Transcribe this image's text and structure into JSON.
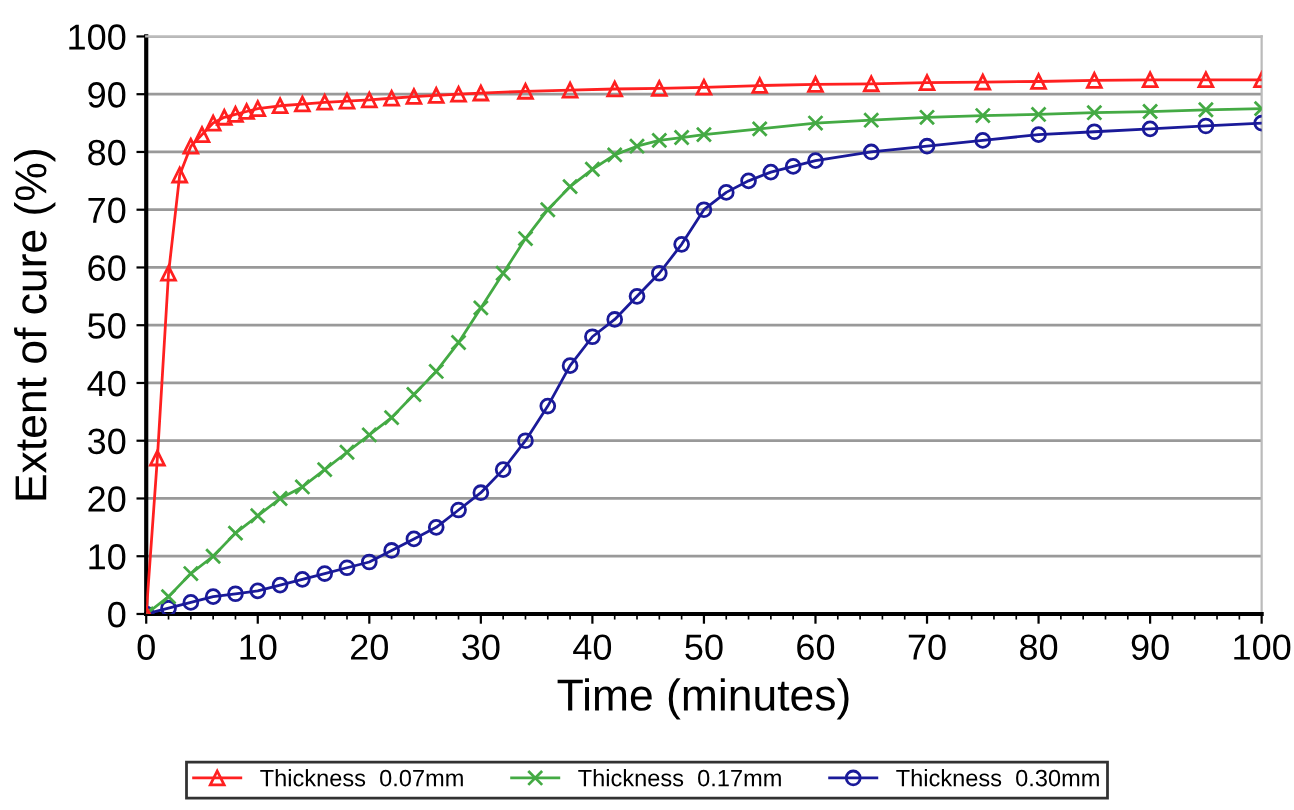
{
  "chart_data": {
    "type": "line",
    "xlabel": "Time (minutes)",
    "ylabel": "Extent of cure (%)",
    "xlim": [
      0,
      100
    ],
    "xticks": [
      0,
      10,
      20,
      30,
      40,
      50,
      60,
      70,
      80,
      90,
      100
    ],
    "ylim": [
      0,
      100
    ],
    "yticks": [
      0,
      10,
      20,
      30,
      40,
      50,
      60,
      70,
      80,
      90,
      100
    ],
    "grid": "y",
    "legend": "bottom",
    "series": [
      {
        "name": "Thickness  0.07mm",
        "color": "#ff2020",
        "marker": "triangle",
        "x": [
          0,
          1,
          2,
          3,
          4,
          5,
          6,
          7,
          8,
          9,
          10,
          12,
          14,
          16,
          18,
          20,
          22,
          24,
          26,
          28,
          30,
          34,
          38,
          42,
          46,
          50,
          55,
          60,
          65,
          70,
          75,
          80,
          85,
          90,
          95,
          100
        ],
        "values": [
          0,
          27,
          59,
          76,
          81,
          83,
          85,
          86,
          86.5,
          87,
          87.5,
          88,
          88.3,
          88.6,
          88.8,
          89,
          89.3,
          89.6,
          89.8,
          90,
          90.2,
          90.5,
          90.7,
          90.9,
          91,
          91.2,
          91.5,
          91.7,
          91.8,
          92,
          92.1,
          92.2,
          92.4,
          92.5,
          92.5,
          92.5
        ]
      },
      {
        "name": "Thickness  0.17mm",
        "color": "#44aa44",
        "marker": "cross",
        "x": [
          0,
          2,
          4,
          6,
          8,
          10,
          12,
          14,
          16,
          18,
          20,
          22,
          24,
          26,
          28,
          30,
          32,
          34,
          36,
          38,
          40,
          42,
          44,
          46,
          48,
          50,
          55,
          60,
          65,
          70,
          75,
          80,
          85,
          90,
          95,
          100
        ],
        "values": [
          0,
          3,
          7,
          10,
          14,
          17,
          20,
          22,
          25,
          28,
          31,
          34,
          38,
          42,
          47,
          53,
          59,
          65,
          70,
          74,
          77,
          79.5,
          81,
          82,
          82.5,
          83,
          84,
          85,
          85.5,
          86,
          86.3,
          86.5,
          86.8,
          87,
          87.3,
          87.5
        ]
      },
      {
        "name": "Thickness  0.30mm",
        "color": "#1a1a99",
        "marker": "circle",
        "x": [
          0,
          2,
          4,
          6,
          8,
          10,
          12,
          14,
          16,
          18,
          20,
          22,
          24,
          26,
          28,
          30,
          32,
          34,
          36,
          38,
          40,
          42,
          44,
          46,
          48,
          50,
          52,
          54,
          56,
          58,
          60,
          65,
          70,
          75,
          80,
          85,
          90,
          95,
          100
        ],
        "values": [
          0,
          1,
          2,
          3,
          3.5,
          4,
          5,
          6,
          7,
          8,
          9,
          11,
          13,
          15,
          18,
          21,
          25,
          30,
          36,
          43,
          48,
          51,
          55,
          59,
          64,
          70,
          73,
          75,
          76.5,
          77.5,
          78.5,
          80,
          81,
          82,
          83,
          83.5,
          84,
          84.5,
          85
        ]
      }
    ]
  }
}
